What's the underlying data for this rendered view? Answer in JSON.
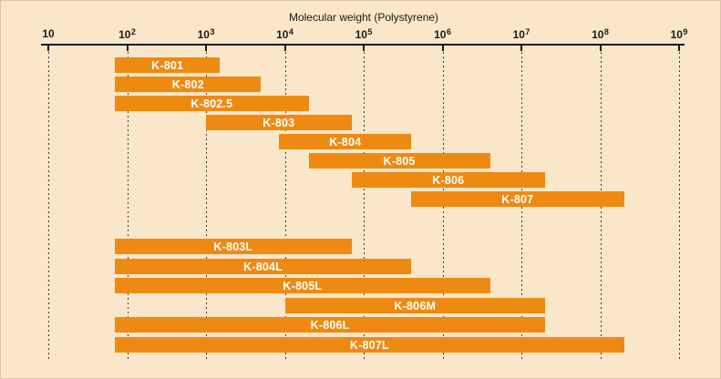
{
  "chart_data": {
    "type": "bar",
    "subtype": "horizontal-log-range-bars",
    "title": "Molecular weight (Polystyrene)",
    "xlabel": "Molecular weight (Polystyrene)",
    "ylabel": "",
    "x_axis": {
      "scale": "log10",
      "min": 10,
      "max": 1000000000,
      "tick_base": "10",
      "tick_exponents": [
        1,
        2,
        3,
        4,
        5,
        6,
        7,
        8,
        9
      ],
      "tick_labels": [
        "10",
        "10^2",
        "10^3",
        "10^4",
        "10^5",
        "10^6",
        "10^7",
        "10^8",
        "10^9"
      ],
      "gridlines": "dashed-vertical"
    },
    "legend": "none",
    "colors": {
      "bar": "#ee8a12",
      "bar_label_text": "#ffffff",
      "background": "#fae6c8",
      "axis": "#1a1a1a"
    },
    "groups": [
      {
        "name": "upper-group",
        "bars": [
          {
            "label": "K-801",
            "min": 70,
            "max": 1500
          },
          {
            "label": "K-802",
            "min": 70,
            "max": 5000
          },
          {
            "label": "K-802.5",
            "min": 70,
            "max": 20000
          },
          {
            "label": "K-803",
            "min": 1000,
            "max": 70000
          },
          {
            "label": "K-804",
            "min": 8500,
            "max": 400000
          },
          {
            "label": "K-805",
            "min": 20000,
            "max": 4000000
          },
          {
            "label": "K-806",
            "min": 70000,
            "max": 20000000
          },
          {
            "label": "K-807",
            "min": 400000,
            "max": 200000000
          }
        ]
      },
      {
        "name": "lower-group",
        "bars": [
          {
            "label": "K-803L",
            "min": 70,
            "max": 70000
          },
          {
            "label": "K-804L",
            "min": 70,
            "max": 400000
          },
          {
            "label": "K-805L",
            "min": 70,
            "max": 4000000
          },
          {
            "label": "K-806M",
            "min": 10000,
            "max": 20000000
          },
          {
            "label": "K-806L",
            "min": 70,
            "max": 20000000
          },
          {
            "label": "K-807L",
            "min": 70,
            "max": 200000000
          }
        ]
      }
    ]
  }
}
